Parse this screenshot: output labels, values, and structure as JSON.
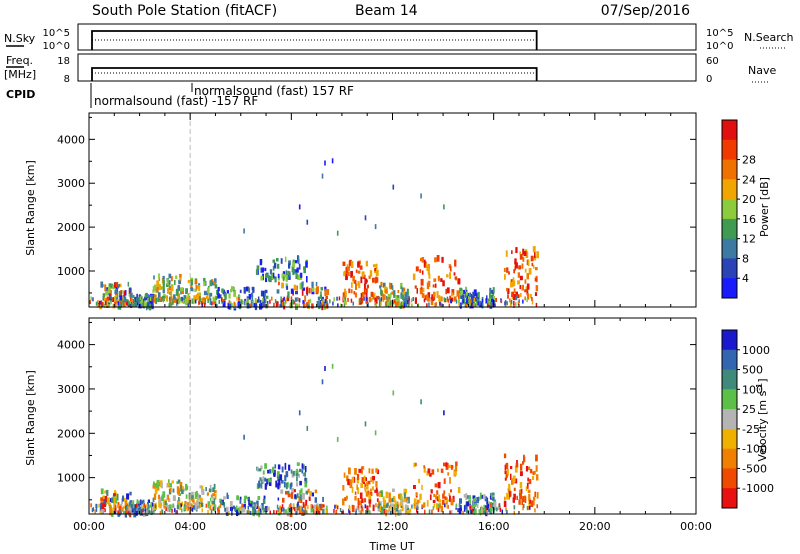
{
  "header": {
    "station": "South Pole Station (fitACF)",
    "beam": "Beam 14",
    "date": "07/Sep/2016"
  },
  "summary": {
    "nsky_label": "N.Sky",
    "nsearch_label": "N.Search",
    "nsky_ticks": [
      "10^5",
      "10^0"
    ],
    "nsearch_ticks": [
      "10^5",
      "10^0"
    ],
    "freq_label_1": "Freq.",
    "freq_label_2": "[MHz]",
    "freq_ticks": [
      "18",
      "8"
    ],
    "nave_label": "Nave",
    "nave_ticks": [
      "60",
      "0"
    ],
    "cpid_label": "CPID",
    "cpid_segments": [
      {
        "text": "normalsound (fast) -157 RF"
      },
      {
        "text": "normalsound (fast) 157 RF"
      }
    ]
  },
  "chart_data": [
    {
      "type": "heatmap",
      "title": "",
      "xlabel": "",
      "ylabel": "Slant Range [km]",
      "xlim_hours": [
        0,
        24
      ],
      "ylim_km": [
        180,
        4600
      ],
      "y_ticks": [
        "1000",
        "2000",
        "3000",
        "4000"
      ],
      "y_tick_values": [
        1000,
        2000,
        3000,
        4000
      ],
      "colorbar": {
        "label": "Power [dB]",
        "ticks": [
          "4",
          "8",
          "12",
          "16",
          "20",
          "24",
          "28"
        ],
        "colors": [
          "#1a1aff",
          "#2a44b8",
          "#3c7aa2",
          "#3f9a52",
          "#8ccc3c",
          "#f0a500",
          "#f07000",
          "#f03a00",
          "#e01010"
        ]
      },
      "data_extent_hours": [
        0.0,
        17.7
      ],
      "clusters": [
        {
          "t0": 0.4,
          "t1": 1.6,
          "r0": 180,
          "r1": 700,
          "level": "mixed"
        },
        {
          "t0": 1.6,
          "t1": 2.5,
          "r0": 180,
          "r1": 450,
          "level": "low"
        },
        {
          "t0": 2.5,
          "t1": 3.6,
          "r0": 300,
          "r1": 900,
          "level": "mid"
        },
        {
          "t0": 3.6,
          "t1": 5.0,
          "r0": 300,
          "r1": 800,
          "level": "mid"
        },
        {
          "t0": 5.0,
          "t1": 7.0,
          "r0": 180,
          "r1": 600,
          "level": "low"
        },
        {
          "t0": 6.6,
          "t1": 8.6,
          "r0": 800,
          "r1": 1300,
          "level": "low"
        },
        {
          "t0": 7.4,
          "t1": 9.4,
          "r0": 180,
          "r1": 700,
          "level": "mixed"
        },
        {
          "t0": 10.0,
          "t1": 11.4,
          "r0": 300,
          "r1": 1200,
          "level": "high"
        },
        {
          "t0": 11.4,
          "t1": 12.6,
          "r0": 200,
          "r1": 700,
          "level": "mid"
        },
        {
          "t0": 12.8,
          "t1": 14.6,
          "r0": 300,
          "r1": 1300,
          "level": "high"
        },
        {
          "t0": 14.6,
          "t1": 16.0,
          "r0": 200,
          "r1": 600,
          "level": "low"
        },
        {
          "t0": 16.4,
          "t1": 17.7,
          "r0": 400,
          "r1": 1500,
          "level": "high"
        }
      ],
      "sparse_points": [
        {
          "t": 9.3,
          "r": 3450
        },
        {
          "t": 9.6,
          "r": 3500
        },
        {
          "t": 9.2,
          "r": 3150
        },
        {
          "t": 8.3,
          "r": 2450
        },
        {
          "t": 8.6,
          "r": 2100
        },
        {
          "t": 10.9,
          "r": 2200
        },
        {
          "t": 12.0,
          "r": 2900
        },
        {
          "t": 13.1,
          "r": 2700
        },
        {
          "t": 14.0,
          "r": 2450
        },
        {
          "t": 6.1,
          "r": 1900
        },
        {
          "t": 9.8,
          "r": 1850
        },
        {
          "t": 11.3,
          "r": 2000
        }
      ]
    },
    {
      "type": "heatmap",
      "title": "",
      "xlabel": "Time UT",
      "ylabel": "Slant Range [km]",
      "xlim_hours": [
        0,
        24
      ],
      "ylim_km": [
        180,
        4600
      ],
      "x_ticks": [
        "00:00",
        "04:00",
        "08:00",
        "12:00",
        "16:00",
        "20:00",
        "00:00"
      ],
      "x_tick_values": [
        0,
        4,
        8,
        12,
        16,
        20,
        24
      ],
      "y_ticks": [
        "1000",
        "2000",
        "3000",
        "4000"
      ],
      "y_tick_values": [
        1000,
        2000,
        3000,
        4000
      ],
      "colorbar": {
        "label": "Velocity [m s",
        "label_exp": "-1",
        "label_close": "]",
        "ticks": [
          "1000",
          "500",
          "100",
          "25",
          "-25",
          "-100",
          "-500",
          "-1000"
        ],
        "colors": [
          "#1a1acc",
          "#3366b0",
          "#3f8a7a",
          "#5cc048",
          "#b4b4b4",
          "#f0b000",
          "#f08000",
          "#f04a00",
          "#e81010"
        ]
      },
      "data_extent_hours": [
        0.0,
        17.7
      ],
      "clusters": [
        {
          "t0": 0.4,
          "t1": 1.6,
          "r0": 180,
          "r1": 700,
          "level": "mixed"
        },
        {
          "t0": 1.6,
          "t1": 2.5,
          "r0": 180,
          "r1": 450,
          "level": "low"
        },
        {
          "t0": 2.5,
          "t1": 3.6,
          "r0": 300,
          "r1": 900,
          "level": "mid"
        },
        {
          "t0": 3.6,
          "t1": 5.0,
          "r0": 300,
          "r1": 800,
          "level": "mid"
        },
        {
          "t0": 5.0,
          "t1": 7.0,
          "r0": 180,
          "r1": 600,
          "level": "low"
        },
        {
          "t0": 6.6,
          "t1": 8.6,
          "r0": 800,
          "r1": 1300,
          "level": "low"
        },
        {
          "t0": 7.4,
          "t1": 9.4,
          "r0": 180,
          "r1": 700,
          "level": "mixed"
        },
        {
          "t0": 10.0,
          "t1": 11.4,
          "r0": 300,
          "r1": 1200,
          "level": "high"
        },
        {
          "t0": 11.4,
          "t1": 12.6,
          "r0": 200,
          "r1": 700,
          "level": "mid"
        },
        {
          "t0": 12.8,
          "t1": 14.6,
          "r0": 300,
          "r1": 1300,
          "level": "high"
        },
        {
          "t0": 14.6,
          "t1": 16.0,
          "r0": 200,
          "r1": 600,
          "level": "low"
        },
        {
          "t0": 16.4,
          "t1": 17.7,
          "r0": 400,
          "r1": 1500,
          "level": "high"
        }
      ],
      "sparse_points": [
        {
          "t": 9.3,
          "r": 3450
        },
        {
          "t": 9.6,
          "r": 3500
        },
        {
          "t": 9.2,
          "r": 3150
        },
        {
          "t": 8.3,
          "r": 2450
        },
        {
          "t": 8.6,
          "r": 2100
        },
        {
          "t": 10.9,
          "r": 2200
        },
        {
          "t": 12.0,
          "r": 2900
        },
        {
          "t": 13.1,
          "r": 2700
        },
        {
          "t": 14.0,
          "r": 2450
        },
        {
          "t": 6.1,
          "r": 1900
        },
        {
          "t": 9.8,
          "r": 1850
        },
        {
          "t": 11.3,
          "r": 2000
        }
      ]
    }
  ]
}
